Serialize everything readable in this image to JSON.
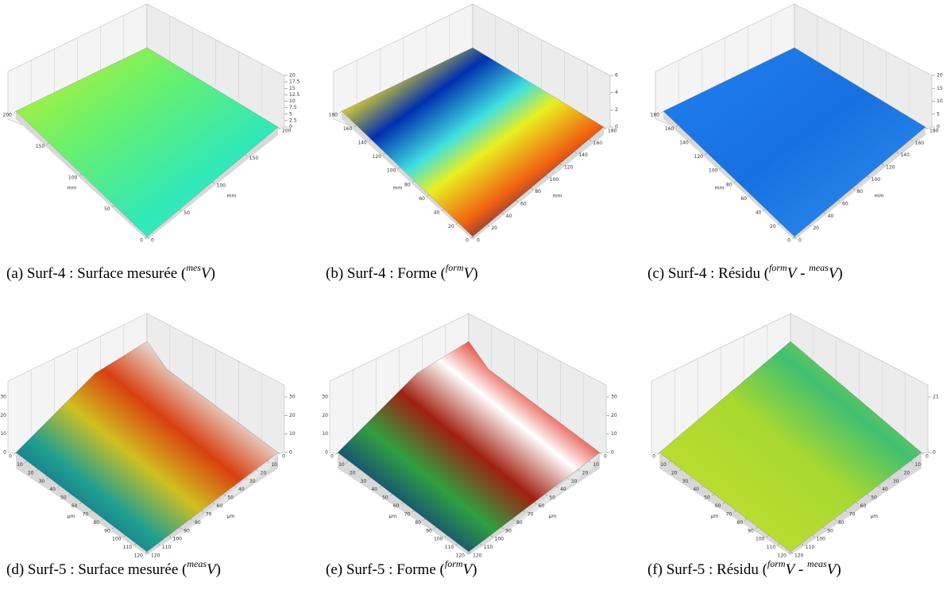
{
  "panels": [
    {
      "z_ticks": [
        0,
        2.5,
        5,
        7.5,
        10,
        12.5,
        15,
        17.5,
        20
      ],
      "left_ticks": [
        200,
        150,
        100,
        50,
        0
      ],
      "right_ticks": [
        0,
        50,
        100,
        150,
        200
      ],
      "unit": "mm",
      "caption": [
        {
          "t": "(a) Surf-4 : Surface mesurée ("
        },
        {
          "sup": "mes"
        },
        {
          "i": "V"
        },
        {
          "t": ")"
        }
      ]
    },
    {
      "z_ticks": [
        0,
        2,
        4,
        6
      ],
      "left_ticks": [
        180,
        160,
        140,
        120,
        100,
        80,
        60,
        40,
        20,
        0
      ],
      "right_ticks": [
        0,
        20,
        40,
        60,
        80,
        100,
        120,
        140,
        160,
        180
      ],
      "unit": "mm",
      "caption": [
        {
          "t": "(b) Surf-4 : Forme ("
        },
        {
          "sup": "form"
        },
        {
          "i": "V"
        },
        {
          "t": ")"
        }
      ]
    },
    {
      "z_ticks": [
        0,
        5,
        10,
        15,
        20
      ],
      "left_ticks": [
        180,
        160,
        140,
        120,
        100,
        80,
        60,
        40,
        20,
        0
      ],
      "right_ticks": [
        0,
        20,
        40,
        60,
        80,
        100,
        120,
        140,
        160,
        180
      ],
      "unit": "mm",
      "caption": [
        {
          "t": "(c) Surf-4 : Résidu ("
        },
        {
          "sup": "form"
        },
        {
          "i": "V"
        },
        {
          "t": " - "
        },
        {
          "sup": "meas"
        },
        {
          "i": "V"
        },
        {
          "t": ")"
        }
      ]
    },
    {
      "z_ticks": [
        0,
        10,
        20,
        30
      ],
      "left_ticks": [
        0,
        10,
        20,
        30,
        40,
        50,
        60,
        70,
        80,
        90,
        100,
        110,
        120
      ],
      "right_ticks": [
        120,
        110,
        100,
        90,
        80,
        70,
        60,
        50,
        40,
        30,
        20,
        10,
        0
      ],
      "unit": "µm",
      "caption": [
        {
          "t": "(d) Surf-5 : Surface mesurée ("
        },
        {
          "sup": "meas"
        },
        {
          "i": "V"
        },
        {
          "t": ")"
        }
      ]
    },
    {
      "z_ticks": [
        0,
        10,
        20,
        30
      ],
      "left_ticks": [
        0,
        10,
        20,
        30,
        40,
        50,
        60,
        70,
        80,
        90,
        100,
        110,
        120
      ],
      "right_ticks": [
        120,
        110,
        100,
        90,
        80,
        70,
        60,
        50,
        40,
        30,
        20,
        10,
        0
      ],
      "unit": "µm",
      "caption": [
        {
          "t": "(e) Surf-5 : Forme ("
        },
        {
          "sup": "form"
        },
        {
          "i": "V"
        },
        {
          "t": ")"
        }
      ]
    },
    {
      "z_ticks": [
        0,
        21
      ],
      "left_ticks": [
        0,
        10,
        20,
        30,
        40,
        50,
        60,
        70,
        80,
        90,
        100,
        110,
        120
      ],
      "right_ticks": [
        120,
        110,
        100,
        90,
        80,
        70,
        60,
        50,
        40,
        30,
        20,
        10,
        0
      ],
      "unit": "µm",
      "caption": [
        {
          "t": "(f) Surf-5 : Résidu ("
        },
        {
          "sup": "form"
        },
        {
          "i": "V"
        },
        {
          "t": " - "
        },
        {
          "sup": "meas"
        },
        {
          "i": "V"
        },
        {
          "t": ")"
        }
      ]
    }
  ]
}
